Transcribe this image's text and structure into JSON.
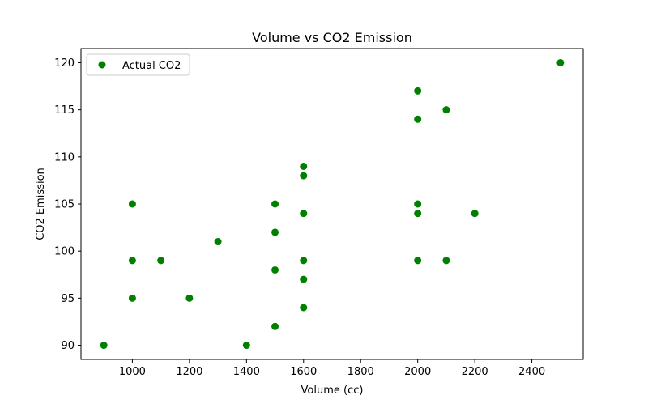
{
  "chart_data": {
    "type": "scatter",
    "title": "Volume vs CO2 Emission",
    "xlabel": "Volume (cc)",
    "ylabel": "CO2 Emission",
    "xlim": [
      820,
      2580
    ],
    "ylim": [
      88.5,
      121.5
    ],
    "xticks": [
      1000,
      1200,
      1400,
      1600,
      1800,
      2000,
      2200,
      2400
    ],
    "yticks": [
      90,
      95,
      100,
      105,
      110,
      115,
      120
    ],
    "grid": false,
    "legend_position": "upper-left",
    "series": [
      {
        "name": "Actual CO2",
        "color": "#008000",
        "points": [
          [
            900,
            90
          ],
          [
            1000,
            105
          ],
          [
            1000,
            99
          ],
          [
            1000,
            95
          ],
          [
            1100,
            99
          ],
          [
            1200,
            95
          ],
          [
            1300,
            101
          ],
          [
            1400,
            90
          ],
          [
            1500,
            105
          ],
          [
            1500,
            102
          ],
          [
            1500,
            98
          ],
          [
            1500,
            92
          ],
          [
            1600,
            109
          ],
          [
            1600,
            108
          ],
          [
            1600,
            104
          ],
          [
            1600,
            99
          ],
          [
            1600,
            97
          ],
          [
            1600,
            94
          ],
          [
            2000,
            117
          ],
          [
            2000,
            114
          ],
          [
            2000,
            105
          ],
          [
            2000,
            104
          ],
          [
            2000,
            99
          ],
          [
            2100,
            115
          ],
          [
            2100,
            99
          ],
          [
            2200,
            104
          ],
          [
            2500,
            120
          ]
        ]
      }
    ]
  }
}
